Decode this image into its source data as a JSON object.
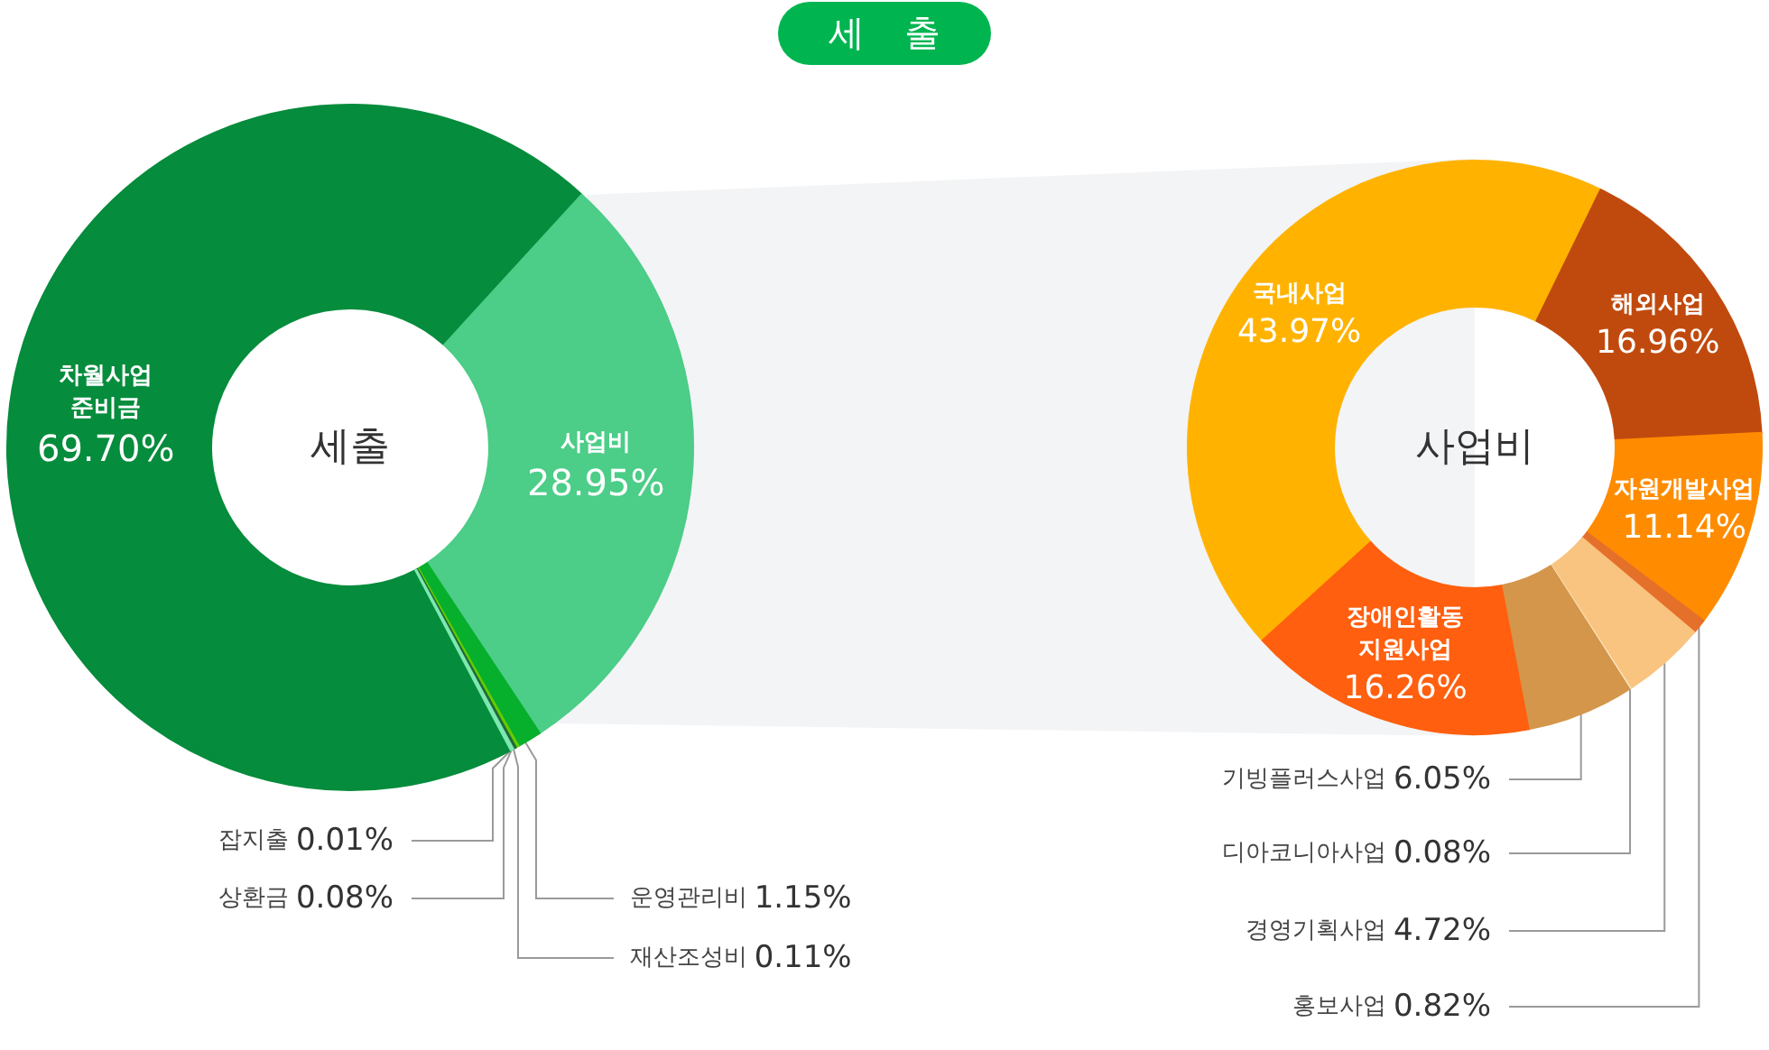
{
  "chart_data": [
    {
      "type": "donut",
      "title": "세 출",
      "annotations": [
        "세출"
      ],
      "categories": [
        "차월사업 준비금",
        "사업비",
        "운영관리비",
        "재산조성비",
        "상환금",
        "잡지출"
      ],
      "values": [
        69.7,
        28.95,
        1.15,
        0.11,
        0.08,
        0.01
      ],
      "value_labels": [
        "69.70%",
        "28.95%",
        "1.15%",
        "0.11%",
        "0.08%",
        "0.01%"
      ],
      "colors": [
        "#058c3c",
        "#4ccd88",
        "#06b02c",
        "#66cc00",
        "#1f6b3a",
        "#7de8b0"
      ]
    },
    {
      "type": "donut",
      "annotations": [
        "사업비"
      ],
      "categories": [
        "국내사업",
        "해외사업",
        "자원개발사업",
        "홍보사업",
        "경영기획사업",
        "디아코니아사업",
        "기빙플러스사업",
        "장애인활동 지원사업"
      ],
      "values": [
        43.97,
        16.96,
        11.14,
        0.82,
        4.72,
        0.08,
        6.05,
        16.26
      ],
      "value_labels": [
        "43.97%",
        "16.96%",
        "11.14%",
        "0.82%",
        "4.72%",
        "0.08%",
        "6.05%",
        "16.26%"
      ],
      "colors": [
        "#ffb300",
        "#c04a0e",
        "#ff8c00",
        "#e5702a",
        "#f8c47f",
        "#fbe6c4",
        "#d4964a",
        "#ff5f0e"
      ]
    }
  ]
}
